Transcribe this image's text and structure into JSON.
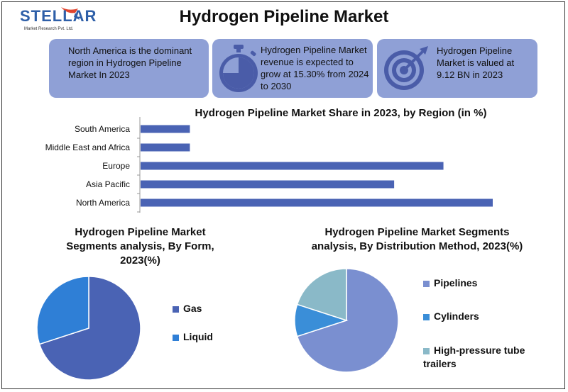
{
  "brand": {
    "name": "STELLAR",
    "tagline": "Market Research Pvt. Ltd."
  },
  "title": "Hydrogen Pipeline Market",
  "cards": [
    {
      "text": "North America is the dominant region in Hydrogen Pipeline Market In 2023",
      "icon": "none"
    },
    {
      "text": "Hydrogen Pipeline Market revenue is expected to grow at 15.30% from 2024 to 2030",
      "icon": "stopwatch-icon"
    },
    {
      "text": "Hydrogen Pipeline Market is valued at 9.12 BN in 2023",
      "icon": "target-icon"
    }
  ],
  "colors": {
    "card": "#8fa0d6",
    "bar": "#4a63b4",
    "gas": "#4a63b4",
    "liquid": "#2f7fd6",
    "pipelines": "#7a8fd0",
    "cylinders": "#3a8ed8",
    "trailers": "#8ab9c8"
  },
  "chart_data": [
    {
      "type": "bar",
      "orientation": "horizontal",
      "title": "Hydrogen Pipeline Market Share in 2023, by Region (in %)",
      "categories": [
        "South America",
        "Middle East and Africa",
        "Europe",
        "Asia Pacific",
        "North America"
      ],
      "values": [
        7,
        7,
        43,
        36,
        50
      ],
      "xlim": [
        0,
        50
      ],
      "grid": false,
      "legend": "none"
    },
    {
      "type": "pie",
      "title": "Hydrogen Pipeline Market Segments analysis, By Form, 2023(%)",
      "labels": [
        "Gas",
        "Liquid"
      ],
      "values": [
        70,
        30
      ],
      "legend": "right"
    },
    {
      "type": "pie",
      "title": "Hydrogen Pipeline Market Segments analysis, By Distribution Method, 2023(%)",
      "labels": [
        "Pipelines",
        "Cylinders",
        "High-pressure tube trailers"
      ],
      "values": [
        70,
        10,
        20
      ],
      "legend": "right"
    }
  ]
}
